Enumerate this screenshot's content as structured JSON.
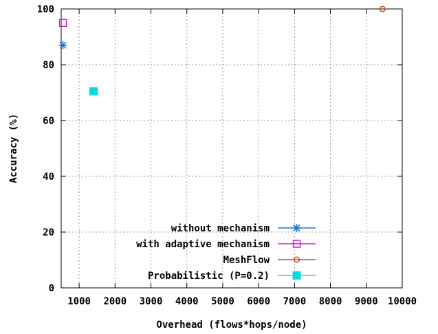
{
  "chart_data": {
    "type": "scatter",
    "title": "",
    "xlabel": "Overhead (flows*hops/node)",
    "ylabel": "Accuracy (%)",
    "xlim": [
      500,
      10000
    ],
    "ylim": [
      0,
      100
    ],
    "x_ticks": [
      {
        "value": 1000,
        "label": "1000"
      },
      {
        "value": 2000,
        "label": "2000"
      },
      {
        "value": 3000,
        "label": "3000"
      },
      {
        "value": 4000,
        "label": "4000"
      },
      {
        "value": 5000,
        "label": "5000"
      },
      {
        "value": 6000,
        "label": "6000"
      },
      {
        "value": 7000,
        "label": "7000"
      },
      {
        "value": 8000,
        "label": "8000"
      },
      {
        "value": 9000,
        "label": "9000"
      },
      {
        "value": 10000,
        "label": "10000"
      }
    ],
    "y_ticks": [
      {
        "value": 0,
        "label": "0"
      },
      {
        "value": 20,
        "label": "20"
      },
      {
        "value": 40,
        "label": "40"
      },
      {
        "value": 60,
        "label": "60"
      },
      {
        "value": 80,
        "label": "80"
      },
      {
        "value": 100,
        "label": "100"
      }
    ],
    "grid": true,
    "legend_position": "bottom-right",
    "series": [
      {
        "name": "without mechanism",
        "color": "#1e78d6",
        "marker": "star",
        "points": [
          {
            "x": 550,
            "y": 87
          }
        ]
      },
      {
        "name": "with adaptive mechanism",
        "color": "#cc22cc",
        "marker": "open-square",
        "points": [
          {
            "x": 550,
            "y": 95
          }
        ]
      },
      {
        "name": "MeshFlow",
        "color": "#c84a16",
        "marker": "open-circle",
        "points": [
          {
            "x": 9450,
            "y": 100
          }
        ]
      },
      {
        "name": "Probabilistic (P=0.2)",
        "color": "#00dddd",
        "marker": "filled-square",
        "points": [
          {
            "x": 1400,
            "y": 70.5
          }
        ]
      }
    ]
  }
}
